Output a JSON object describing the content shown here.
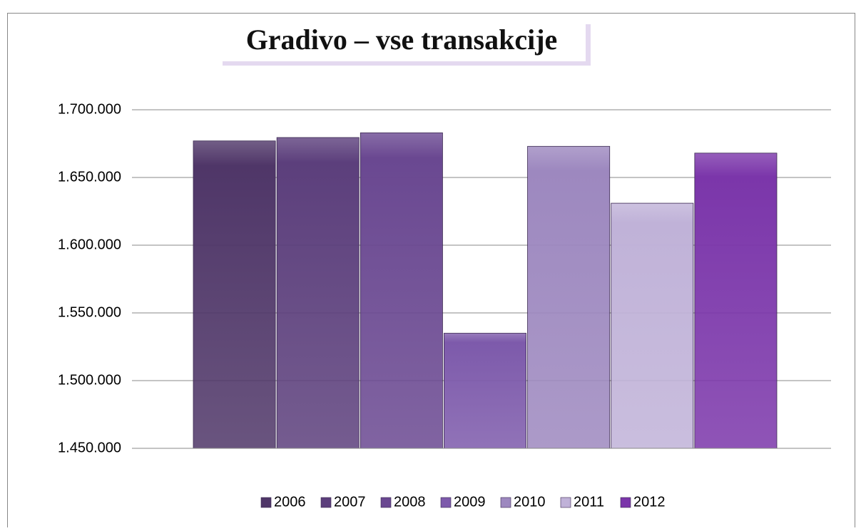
{
  "chart_data": {
    "type": "bar",
    "title": "Gradivo – vse transakcije",
    "categories": [
      null
    ],
    "series": [
      {
        "name": "2006",
        "color": "#4f3668",
        "values": [
          1677000
        ]
      },
      {
        "name": "2007",
        "color": "#5c3f7c",
        "values": [
          1679500
        ]
      },
      {
        "name": "2008",
        "color": "#6a4891",
        "values": [
          1683000
        ]
      },
      {
        "name": "2009",
        "color": "#7d5aab",
        "values": [
          1535000
        ]
      },
      {
        "name": "2010",
        "color": "#9d88bf",
        "values": [
          1673000
        ]
      },
      {
        "name": "2011",
        "color": "#c0b2d8",
        "values": [
          1631000
        ]
      },
      {
        "name": "2012",
        "color": "#7b36aa",
        "values": [
          1668000
        ]
      }
    ],
    "ylim": [
      1450000,
      1700000
    ],
    "yticks": [
      {
        "value": 1450000,
        "label": "1.450.000"
      },
      {
        "value": 1500000,
        "label": "1.500.000"
      },
      {
        "value": 1550000,
        "label": "1.550.000"
      },
      {
        "value": 1600000,
        "label": "1.600.000"
      },
      {
        "value": 1650000,
        "label": "1.650.000"
      },
      {
        "value": 1700000,
        "label": "1.700.000"
      }
    ],
    "grid": true,
    "legend": "bottom"
  }
}
